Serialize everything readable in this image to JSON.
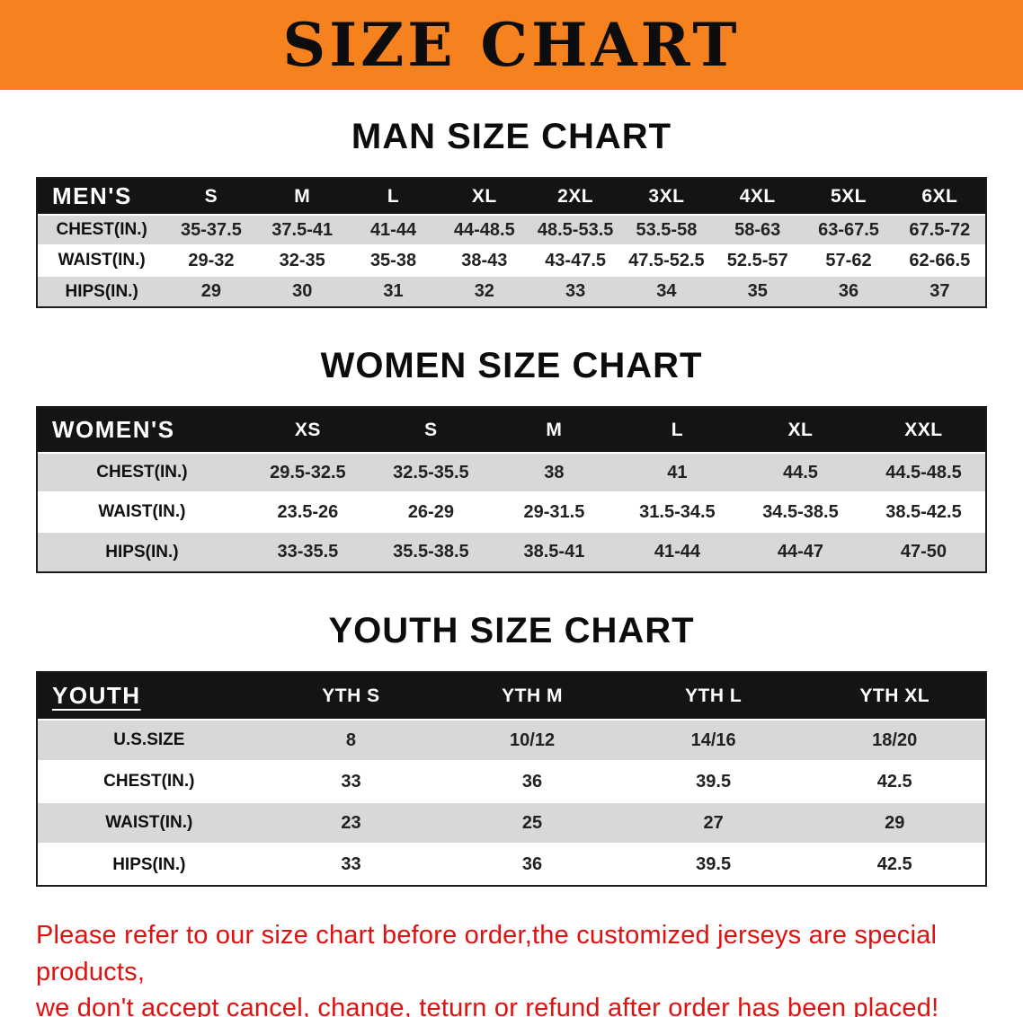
{
  "banner": {
    "title": "SIZE CHART",
    "bg_color": "#f5821f"
  },
  "colors": {
    "header_bg": "#141414",
    "row_alt": "#d8d8d8",
    "disclaimer_red": "#e01111"
  },
  "sections": [
    {
      "heading": "MAN SIZE CHART",
      "table": {
        "header": [
          "MEN'S",
          "S",
          "M",
          "L",
          "XL",
          "2XL",
          "3XL",
          "4XL",
          "5XL",
          "6XL"
        ],
        "rows": [
          {
            "label": "CHEST(IN.)",
            "values": [
              "35-37.5",
              "37.5-41",
              "41-44",
              "44-48.5",
              "48.5-53.5",
              "53.5-58",
              "58-63",
              "63-67.5",
              "67.5-72"
            ]
          },
          {
            "label": "WAIST(IN.)",
            "values": [
              "29-32",
              "32-35",
              "35-38",
              "38-43",
              "43-47.5",
              "47.5-52.5",
              "52.5-57",
              "57-62",
              "62-66.5"
            ]
          },
          {
            "label": "HIPS(IN.)",
            "values": [
              "29",
              "30",
              "31",
              "32",
              "33",
              "34",
              "35",
              "36",
              "37"
            ]
          }
        ]
      }
    },
    {
      "heading": "WOMEN SIZE CHART",
      "table": {
        "header": [
          "WOMEN'S",
          "XS",
          "S",
          "M",
          "L",
          "XL",
          "XXL"
        ],
        "rows": [
          {
            "label": "CHEST(IN.)",
            "values": [
              "29.5-32.5",
              "32.5-35.5",
              "38",
              "41",
              "44.5",
              "44.5-48.5"
            ]
          },
          {
            "label": "WAIST(IN.)",
            "values": [
              "23.5-26",
              "26-29",
              "29-31.5",
              "31.5-34.5",
              "34.5-38.5",
              "38.5-42.5"
            ]
          },
          {
            "label": "HIPS(IN.)",
            "values": [
              "33-35.5",
              "35.5-38.5",
              "38.5-41",
              "41-44",
              "44-47",
              "47-50"
            ]
          }
        ]
      }
    },
    {
      "heading": "YOUTH SIZE CHART",
      "table": {
        "header": [
          "YOUTH",
          "YTH S",
          "YTH M",
          "YTH L",
          "YTH XL"
        ],
        "rows": [
          {
            "label": "U.S.SIZE",
            "values": [
              "8",
              "10/12",
              "14/16",
              "18/20"
            ]
          },
          {
            "label": "CHEST(IN.)",
            "values": [
              "33",
              "36",
              "39.5",
              "42.5"
            ]
          },
          {
            "label": "WAIST(IN.)",
            "values": [
              "23",
              "25",
              "27",
              "29"
            ]
          },
          {
            "label": "HIPS(IN.)",
            "values": [
              "33",
              "36",
              "39.5",
              "42.5"
            ]
          }
        ]
      }
    }
  ],
  "disclaimer": {
    "line1": "Please refer to our size chart before order,the customized jerseys are special products,",
    "line2": "we don't accept cancel, change, teturn or refund after order has been placed!",
    "color": "#e01111"
  }
}
